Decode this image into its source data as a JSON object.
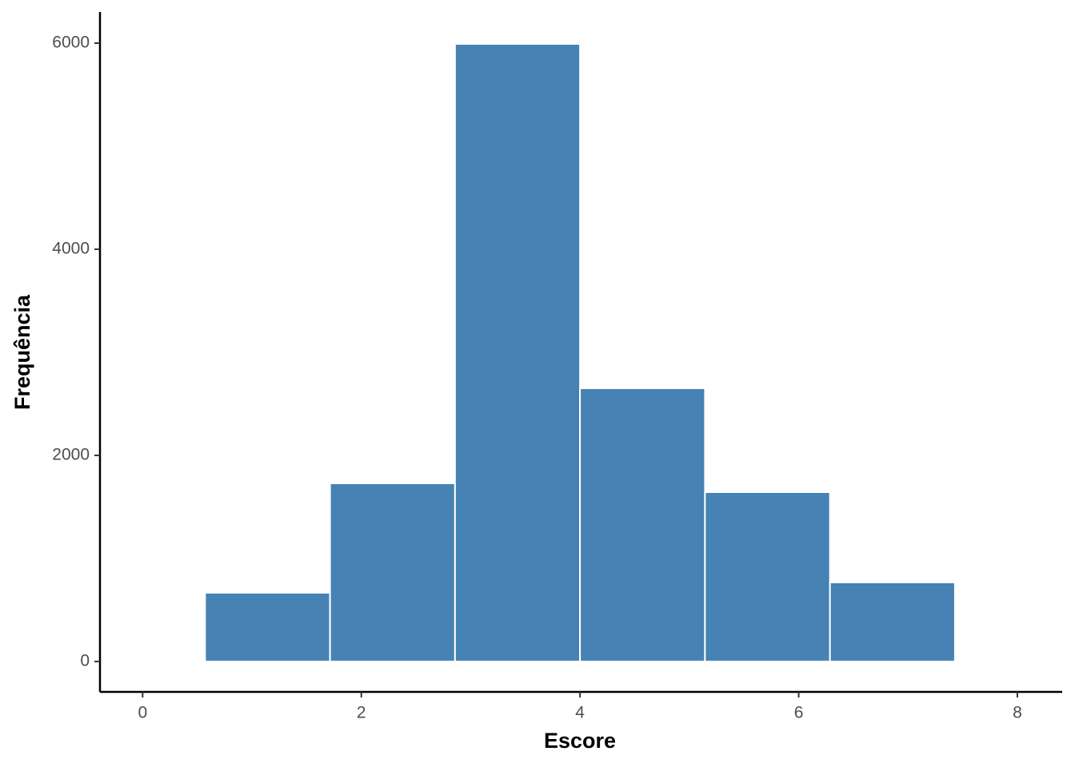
{
  "chart_data": {
    "type": "histogram",
    "x_label": "Escore",
    "y_label": "Frequência",
    "bins": [
      0.571,
      1.714,
      2.857,
      4.0,
      5.143,
      6.286,
      7.429
    ],
    "counts": [
      667,
      1729,
      5992,
      2651,
      1643,
      767
    ],
    "color": "#4682b4",
    "xlim": [
      -0.39,
      8.41
    ],
    "xticks": [
      0,
      2,
      4,
      6,
      8
    ],
    "ylim": [
      -295,
      6302
    ],
    "yticks": [
      0,
      2000,
      4000,
      6000
    ],
    "grid": false
  }
}
